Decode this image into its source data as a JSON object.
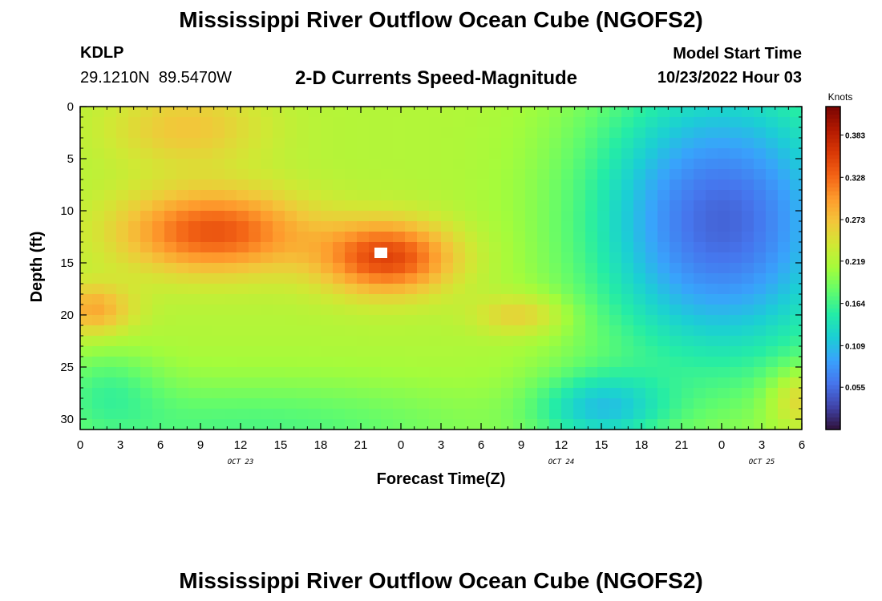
{
  "header": {
    "title": "Mississippi River Outflow Ocean Cube (NGOFS2)",
    "station_id": "KDLP",
    "lat": "29.1210N",
    "lon": "89.5470W",
    "subtitle": "2-D Currents Speed-Magnitude",
    "model_start_label": "Model Start Time",
    "model_start_value": "10/23/2022 Hour 03"
  },
  "footer": {
    "title": "Mississippi River Outflow Ocean Cube (NGOFS2)"
  },
  "chart_data": {
    "type": "heatmap",
    "xlabel": "Forecast Time(Z)",
    "ylabel": "Depth (ft)",
    "xlim_hours": [
      0,
      54
    ],
    "ylim_ft": [
      0,
      31
    ],
    "x_tick_labels": [
      "0",
      "3",
      "6",
      "9",
      "12",
      "15",
      "18",
      "21",
      "0",
      "3",
      "6",
      "9",
      "12",
      "15",
      "18",
      "21",
      "0",
      "3",
      "6"
    ],
    "y_tick_labels": [
      "0",
      "5",
      "10",
      "15",
      "20",
      "25",
      "30"
    ],
    "y_tick_values": [
      0,
      5,
      10,
      15,
      20,
      25,
      30
    ],
    "date_labels": [
      {
        "label": "OCT 23",
        "hour": 12
      },
      {
        "label": "OCT 24",
        "hour": 36
      },
      {
        "label": "OCT 25",
        "hour": 51
      }
    ],
    "colorbar": {
      "label": "Knots",
      "min": 0.0,
      "max": 0.42,
      "tick_labels": [
        "0.383",
        "0.328",
        "0.273",
        "0.219",
        "0.164",
        "0.109",
        "0.055"
      ],
      "tick_values": [
        0.383,
        0.328,
        0.273,
        0.219,
        0.164,
        0.109,
        0.055
      ],
      "colors": [
        "#30123b",
        "#4145ab",
        "#4675ed",
        "#39a2fc",
        "#1bcfd4",
        "#24eca6",
        "#61fc6c",
        "#a4fc3b",
        "#d1e834",
        "#f3c63a",
        "#fe9b2d",
        "#f36315",
        "#d93806",
        "#b11901",
        "#7a0402"
      ]
    },
    "components": [
      {
        "hour": 10,
        "depth": 12,
        "sh": 7,
        "sd": 4,
        "amp": 0.12
      },
      {
        "hour": 23,
        "depth": 14.5,
        "sh": 5,
        "sd": 3.5,
        "amp": 0.13
      },
      {
        "hour": 1,
        "depth": 19.5,
        "sh": 3,
        "sd": 2.5,
        "amp": 0.07
      },
      {
        "hour": 33,
        "depth": 20,
        "sh": 3.5,
        "sd": 2,
        "amp": 0.05
      },
      {
        "hour": 8,
        "depth": 2,
        "sh": 6,
        "sd": 4,
        "amp": 0.05
      },
      {
        "hour": 48,
        "depth": 11,
        "sh": 10,
        "sd": 14,
        "amp": -0.17
      },
      {
        "hour": 39,
        "depth": 29,
        "sh": 5,
        "sd": 3.5,
        "amp": -0.09
      },
      {
        "hour": 13,
        "depth": 31,
        "sh": 18,
        "sd": 5,
        "amp": -0.05
      },
      {
        "hour": 2,
        "depth": 27,
        "sh": 4,
        "sd": 4,
        "amp": -0.04
      },
      {
        "hour": 54,
        "depth": 28,
        "sh": 2.5,
        "sd": 3,
        "amp": 0.06
      }
    ],
    "base_speed": 0.22,
    "white_patch": {
      "hour": 22.5,
      "depth": 14
    }
  }
}
